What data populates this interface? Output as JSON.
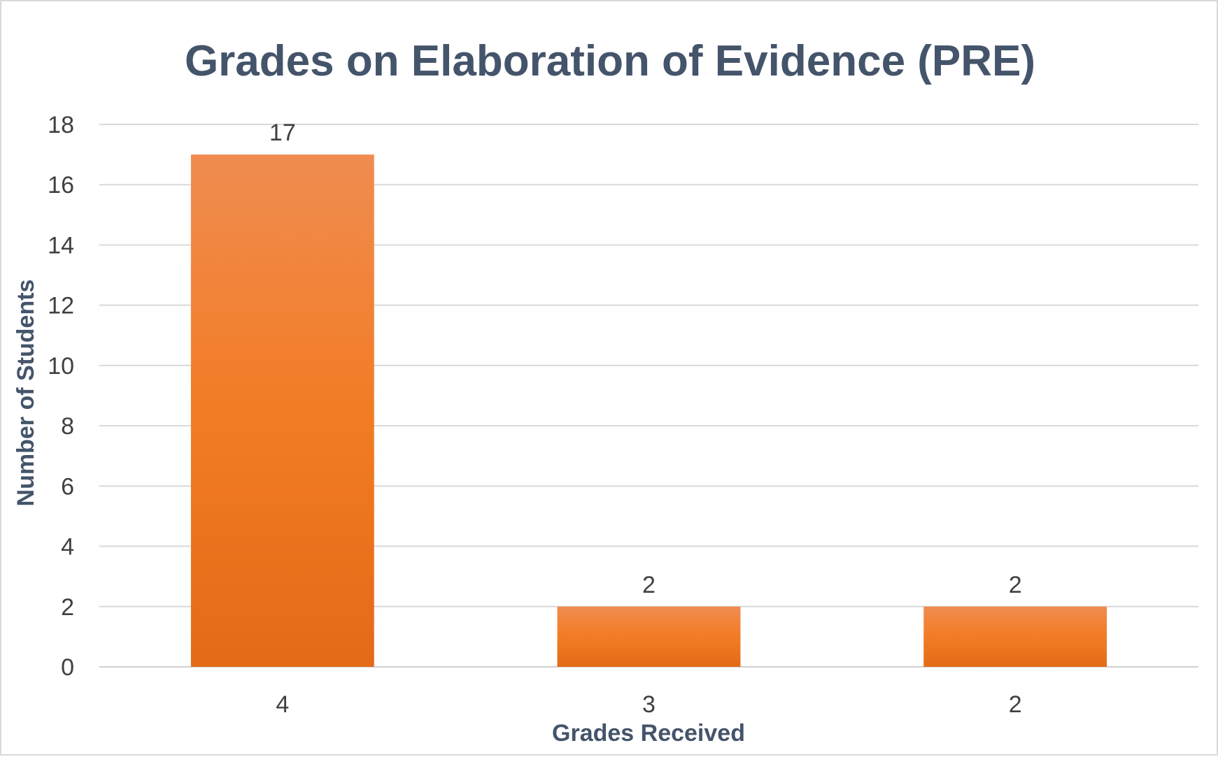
{
  "chart_data": {
    "type": "bar",
    "title": "Grades on Elaboration of Evidence (PRE)",
    "xlabel": "Grades Received",
    "ylabel": "Number of Students",
    "categories": [
      "4",
      "3",
      "2"
    ],
    "values": [
      17,
      2,
      2
    ],
    "data_labels": [
      "17",
      "2",
      "2"
    ],
    "ylim": [
      0,
      18
    ],
    "yticks": [
      "0",
      "2",
      "4",
      "6",
      "8",
      "10",
      "12",
      "14",
      "16",
      "18"
    ],
    "grid": true,
    "legend": "none",
    "bar_color": "#ed7d31"
  }
}
